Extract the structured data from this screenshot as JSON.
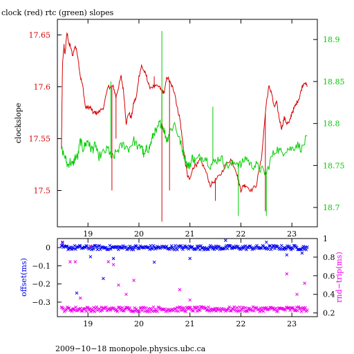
{
  "chart_data": [
    {
      "type": "line",
      "title": "clock (red) rtc (green) slopes",
      "ylabel": "clockslope",
      "xlim": [
        18.4,
        23.5
      ],
      "x_ticks": [
        19,
        20,
        21,
        22,
        23
      ],
      "y_left": {
        "lim": [
          17.465,
          17.665
        ],
        "ticks": [
          17.5,
          17.55,
          17.6,
          17.65
        ],
        "color": "#d40000"
      },
      "y_right": {
        "lim": [
          18.677,
          18.924
        ],
        "ticks": [
          18.7,
          18.75,
          18.8,
          18.85,
          18.9
        ],
        "color": "#00cc00"
      },
      "series": [
        {
          "color": "#d40000",
          "axis": "left",
          "x": [
            18.48,
            18.5,
            18.53,
            18.55,
            18.58,
            18.6,
            18.63,
            18.65,
            18.7,
            18.75,
            18.8,
            18.85,
            18.9,
            18.95,
            19.0,
            19.05,
            19.1,
            19.15,
            19.2,
            19.3,
            19.4,
            19.45,
            19.5,
            19.55,
            19.6,
            19.65,
            19.7,
            19.75,
            19.8,
            19.85,
            19.9,
            19.95,
            20.0,
            20.05,
            20.1,
            20.15,
            20.2,
            20.3,
            20.4,
            20.45,
            20.5,
            20.55,
            20.6,
            20.65,
            20.7,
            20.75,
            20.8,
            20.85,
            20.9,
            20.95,
            21.0,
            21.05,
            21.1,
            21.15,
            21.2,
            21.3,
            21.4,
            21.5,
            21.6,
            21.7,
            21.8,
            21.9,
            21.95,
            22.0,
            22.05,
            22.1,
            22.2,
            22.3,
            22.4,
            22.5,
            22.55,
            22.6,
            22.65,
            22.7,
            22.75,
            22.8,
            22.85,
            22.9,
            22.95,
            23.0,
            23.05,
            23.1,
            23.15,
            23.2,
            23.25,
            23.3
          ],
          "y": [
            17.54,
            17.62,
            17.64,
            17.63,
            17.65,
            17.65,
            17.64,
            17.64,
            17.63,
            17.64,
            17.63,
            17.61,
            17.6,
            17.58,
            17.58,
            17.58,
            17.575,
            17.575,
            17.575,
            17.58,
            17.6,
            17.6,
            17.6,
            17.59,
            17.6,
            17.61,
            17.595,
            17.565,
            17.575,
            17.57,
            17.585,
            17.59,
            17.61,
            17.62,
            17.615,
            17.61,
            17.6,
            17.6,
            17.6,
            17.595,
            17.595,
            17.61,
            17.605,
            17.6,
            17.595,
            17.58,
            17.57,
            17.55,
            17.53,
            17.515,
            17.51,
            17.52,
            17.525,
            17.525,
            17.53,
            17.52,
            17.505,
            17.51,
            17.515,
            17.525,
            17.53,
            17.52,
            17.51,
            17.5,
            17.505,
            17.505,
            17.5,
            17.505,
            17.53,
            17.585,
            17.6,
            17.595,
            17.58,
            17.585,
            17.57,
            17.56,
            17.57,
            17.565,
            17.565,
            17.575,
            17.58,
            17.585,
            17.59,
            17.6,
            17.605,
            17.6
          ]
        },
        {
          "color": "#00cc00",
          "axis": "right",
          "x": [
            18.48,
            18.55,
            18.6,
            18.65,
            18.7,
            18.75,
            18.8,
            18.85,
            18.9,
            18.95,
            19.0,
            19.05,
            19.1,
            19.15,
            19.2,
            19.3,
            19.4,
            19.45,
            19.5,
            19.6,
            19.7,
            19.8,
            19.9,
            20.0,
            20.05,
            20.1,
            20.15,
            20.2,
            20.25,
            20.3,
            20.35,
            20.4,
            20.45,
            20.5,
            20.55,
            20.6,
            20.7,
            20.8,
            20.85,
            20.9,
            20.95,
            21.0,
            21.05,
            21.1,
            21.2,
            21.3,
            21.4,
            21.5,
            21.6,
            21.7,
            21.8,
            21.9,
            22.0,
            22.1,
            22.2,
            22.3,
            22.4,
            22.5,
            22.6,
            22.7,
            22.8,
            22.9,
            23.0,
            23.1,
            23.2,
            23.3
          ],
          "y": [
            18.77,
            18.76,
            18.75,
            18.755,
            18.75,
            18.76,
            18.76,
            18.78,
            18.77,
            18.775,
            18.78,
            18.77,
            18.77,
            18.775,
            18.76,
            18.765,
            18.77,
            18.76,
            18.76,
            18.77,
            18.775,
            18.77,
            18.78,
            18.77,
            18.775,
            18.76,
            18.77,
            18.77,
            18.78,
            18.79,
            18.79,
            18.8,
            18.8,
            18.79,
            18.78,
            18.79,
            18.8,
            18.78,
            18.77,
            18.76,
            18.75,
            18.75,
            18.76,
            18.755,
            18.76,
            18.76,
            18.75,
            18.755,
            18.76,
            18.75,
            18.75,
            18.755,
            18.75,
            18.76,
            18.75,
            18.75,
            18.745,
            18.74,
            18.76,
            18.77,
            18.765,
            18.77,
            18.77,
            18.775,
            18.77,
            18.785
          ]
        }
      ],
      "spikes": [
        {
          "x": 19.47,
          "y": 17.5,
          "series": 0
        },
        {
          "x": 19.55,
          "y": 17.55,
          "series": 0
        },
        {
          "x": 20.3,
          "y": 17.61,
          "series": 0
        },
        {
          "x": 20.45,
          "y": 17.47,
          "series": 0
        },
        {
          "x": 20.6,
          "y": 17.5,
          "series": 0
        },
        {
          "x": 21.5,
          "y": 17.49,
          "series": 0
        },
        {
          "x": 22.48,
          "y": 17.48,
          "series": 0
        },
        {
          "x": 19.45,
          "y": 18.85,
          "series": 1
        },
        {
          "x": 20.45,
          "y": 18.91,
          "series": 1
        },
        {
          "x": 21.45,
          "y": 18.82,
          "series": 1
        },
        {
          "x": 21.95,
          "y": 18.69,
          "series": 1
        },
        {
          "x": 22.5,
          "y": 18.69,
          "series": 1
        }
      ]
    },
    {
      "type": "scatter",
      "xlim": [
        18.4,
        23.5
      ],
      "x_ticks": [
        19,
        20,
        21,
        22,
        23
      ],
      "y_left": {
        "label": "offset(ms)",
        "lim": [
          -0.38,
          0.05
        ],
        "ticks": [
          0,
          -0.1,
          -0.2,
          -0.3
        ],
        "tick_labels": [
          "0",
          "−0.1",
          "−0.2",
          "−0.3"
        ],
        "color": "#0000ee"
      },
      "y_right": {
        "label": "rnd−trip(ms)",
        "lim": [
          0.16,
          1.0
        ],
        "ticks": [
          0.2,
          0.4,
          0.6,
          0.8,
          1
        ],
        "tick_labels": [
          "0.2",
          "0.4",
          "0.6",
          "0.8",
          "1"
        ],
        "color": "#ee00ee"
      },
      "series": [
        {
          "color": "#0000ee",
          "axis": "left",
          "baseline": 0.0,
          "spread": 0.012,
          "marker": "x"
        },
        {
          "color": "#ee00ee",
          "axis": "right",
          "baseline": 0.24,
          "spread": 0.025,
          "marker": "x"
        }
      ],
      "outliers_left": [
        [
          18.5,
          0.03
        ],
        [
          18.78,
          -0.25
        ],
        [
          19.05,
          -0.05
        ],
        [
          19.3,
          -0.17
        ],
        [
          19.5,
          -0.06
        ],
        [
          20.3,
          -0.08
        ],
        [
          21.0,
          -0.06
        ],
        [
          21.7,
          0.04
        ],
        [
          22.5,
          0.03
        ],
        [
          22.9,
          -0.04
        ],
        [
          23.2,
          -0.03
        ]
      ],
      "outliers_right": [
        [
          18.5,
          0.95
        ],
        [
          18.65,
          0.75
        ],
        [
          18.75,
          0.75
        ],
        [
          18.85,
          0.36
        ],
        [
          19.05,
          0.92
        ],
        [
          19.4,
          0.75
        ],
        [
          19.5,
          0.72
        ],
        [
          19.6,
          0.5
        ],
        [
          19.75,
          0.4
        ],
        [
          19.9,
          0.55
        ],
        [
          20.8,
          0.45
        ],
        [
          21.0,
          0.34
        ],
        [
          22.9,
          0.62
        ],
        [
          23.25,
          0.52
        ],
        [
          23.1,
          0.4
        ]
      ]
    }
  ],
  "footer": "2009−10−18  monopole.physics.ubc.ca"
}
